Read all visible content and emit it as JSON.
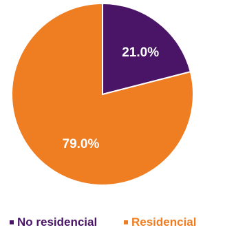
{
  "chart_data": {
    "type": "pie",
    "categories": [
      "No residencial",
      "Residencial"
    ],
    "values": [
      21.0,
      79.0
    ],
    "labels": [
      "21.0%",
      "79.0%"
    ],
    "colors": [
      "#4a1566",
      "#ef7d22"
    ],
    "start_angle_deg": 0,
    "direction": "clockwise",
    "legend": "bottom",
    "title": ""
  }
}
